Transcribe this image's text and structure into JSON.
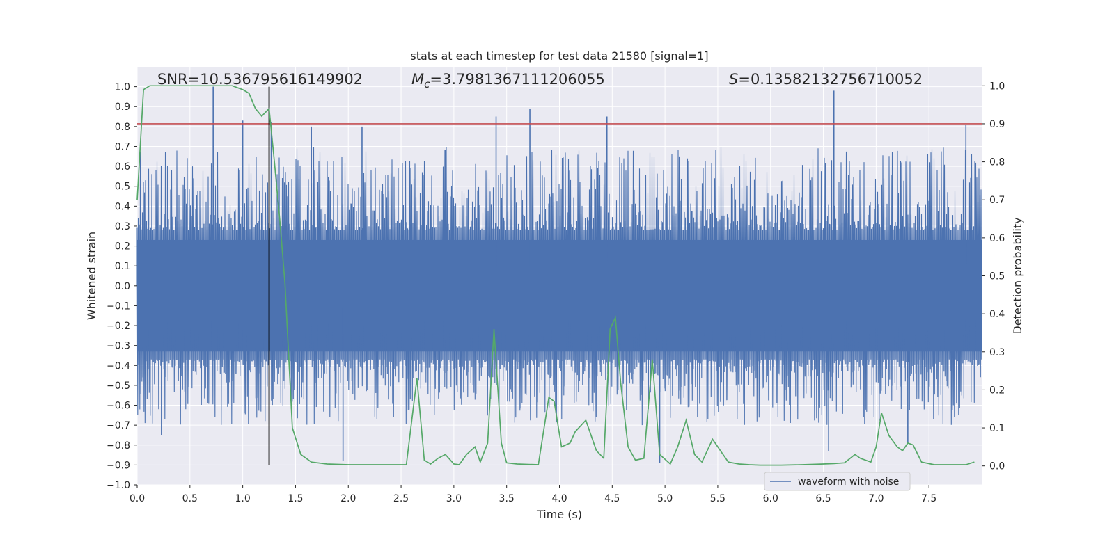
{
  "chart_data": {
    "type": "line",
    "title": "stats at each timestep for test data 21580 [signal=1]",
    "xlabel": "Time (s)",
    "ylabel": "Whitened strain",
    "ylabel_right": "Detection probability",
    "xlim": [
      0.0,
      8.0
    ],
    "ylim": [
      -1.0,
      1.1
    ],
    "ylim_right": [
      -0.05,
      1.05
    ],
    "x_ticks": [
      0.0,
      0.5,
      1.0,
      1.5,
      2.0,
      2.5,
      3.0,
      3.5,
      4.0,
      4.5,
      5.0,
      5.5,
      6.0,
      6.5,
      7.0,
      7.5
    ],
    "x_tick_labels": [
      "0.0",
      "0.5",
      "1.0",
      "1.5",
      "2.0",
      "2.5",
      "3.0",
      "3.5",
      "4.0",
      "4.5",
      "5.0",
      "5.5",
      "6.0",
      "6.5",
      "7.0",
      "7.5"
    ],
    "y_ticks": [
      1.0,
      0.9,
      0.8,
      0.7,
      0.6,
      0.5,
      0.4,
      0.3,
      0.2,
      0.1,
      0.0,
      -0.1,
      -0.2,
      -0.3,
      -0.4,
      -0.5,
      -0.6,
      -0.7,
      -0.8,
      -0.9,
      -1.0
    ],
    "y_tick_labels": [
      "1.0",
      "0.9",
      "0.8",
      "0.7",
      "0.6",
      "0.5",
      "0.4",
      "0.3",
      "0.2",
      "0.1",
      "0.0",
      "−0.1",
      "−0.2",
      "−0.3",
      "−0.4",
      "−0.5",
      "−0.6",
      "−0.7",
      "−0.8",
      "−0.9",
      "−1.0"
    ],
    "y_ticks_right": [
      1.0,
      0.9,
      0.8,
      0.7,
      0.6,
      0.5,
      0.4,
      0.3,
      0.2,
      0.1,
      0.0
    ],
    "y_tick_labels_right": [
      "1.0",
      "0.9",
      "0.8",
      "0.7",
      "0.6",
      "0.5",
      "0.4",
      "0.3",
      "0.2",
      "0.1",
      "0.0"
    ],
    "annotations": [
      {
        "name": "snr",
        "text": "SNR=10.536795616149902"
      },
      {
        "name": "chirp-mass",
        "italic": "M",
        "sub": "c",
        "rest": "=3.7981367111206055"
      },
      {
        "name": "s-stat",
        "italic": "S",
        "rest": "=0.13582132756710052"
      }
    ],
    "hlines": [
      {
        "name": "threshold-line",
        "axis": "right",
        "y": 0.9,
        "color": "#c44e52"
      }
    ],
    "vlines": [
      {
        "name": "event-time-line",
        "x": 1.25,
        "y_range": [
          -0.9,
          1.0
        ],
        "color": "#000000"
      }
    ],
    "waveform": {
      "name": "waveform with noise",
      "color": "#4c72b0",
      "band_hi": 0.23,
      "band_lo": -0.33,
      "spikes": [
        {
          "x": 0.72,
          "y": 1.0
        },
        {
          "x": 1.0,
          "y": 0.83
        },
        {
          "x": 1.27,
          "y": 0.82
        },
        {
          "x": 1.65,
          "y": 0.8
        },
        {
          "x": 2.13,
          "y": 0.8
        },
        {
          "x": 3.4,
          "y": 0.85
        },
        {
          "x": 3.72,
          "y": 0.89
        },
        {
          "x": 4.45,
          "y": 0.85
        },
        {
          "x": 6.6,
          "y": 0.98
        },
        {
          "x": 7.85,
          "y": 0.81
        },
        {
          "x": 0.23,
          "y": -0.75
        },
        {
          "x": 1.95,
          "y": -0.88
        },
        {
          "x": 4.95,
          "y": -0.89
        },
        {
          "x": 6.55,
          "y": -0.83
        },
        {
          "x": 7.3,
          "y": -0.79
        }
      ]
    },
    "series": [
      {
        "name": "detection probability",
        "axis": "right",
        "color": "#55a868",
        "x": [
          0.0,
          0.06,
          0.12,
          0.2,
          0.3,
          0.5,
          0.7,
          0.9,
          1.0,
          1.06,
          1.12,
          1.18,
          1.25,
          1.3,
          1.35,
          1.4,
          1.47,
          1.55,
          1.65,
          1.8,
          2.0,
          2.2,
          2.4,
          2.55,
          2.65,
          2.72,
          2.78,
          2.85,
          2.92,
          3.0,
          3.05,
          3.12,
          3.2,
          3.25,
          3.32,
          3.38,
          3.45,
          3.5,
          3.6,
          3.8,
          3.9,
          3.95,
          4.02,
          4.1,
          4.15,
          4.25,
          4.35,
          4.42,
          4.48,
          4.53,
          4.58,
          4.65,
          4.72,
          4.8,
          4.88,
          4.95,
          5.05,
          5.12,
          5.2,
          5.28,
          5.35,
          5.45,
          5.55,
          5.6,
          5.7,
          5.8,
          5.9,
          6.1,
          6.3,
          6.5,
          6.6,
          6.7,
          6.8,
          6.85,
          6.95,
          7.0,
          7.05,
          7.12,
          7.2,
          7.25,
          7.3,
          7.35,
          7.43,
          7.55,
          7.7,
          7.85,
          7.93
        ],
        "y": [
          0.7,
          0.99,
          1.0,
          1.0,
          1.0,
          1.0,
          1.0,
          1.0,
          0.99,
          0.98,
          0.94,
          0.92,
          0.94,
          0.8,
          0.65,
          0.48,
          0.1,
          0.03,
          0.01,
          0.005,
          0.003,
          0.003,
          0.003,
          0.003,
          0.23,
          0.015,
          0.005,
          0.02,
          0.03,
          0.005,
          0.003,
          0.03,
          0.05,
          0.01,
          0.06,
          0.36,
          0.06,
          0.008,
          0.005,
          0.003,
          0.18,
          0.17,
          0.05,
          0.06,
          0.09,
          0.12,
          0.04,
          0.02,
          0.36,
          0.39,
          0.22,
          0.05,
          0.015,
          0.02,
          0.28,
          0.03,
          0.005,
          0.05,
          0.12,
          0.03,
          0.01,
          0.07,
          0.03,
          0.01,
          0.005,
          0.003,
          0.002,
          0.002,
          0.003,
          0.005,
          0.006,
          0.008,
          0.03,
          0.02,
          0.01,
          0.05,
          0.14,
          0.08,
          0.05,
          0.04,
          0.06,
          0.055,
          0.01,
          0.003,
          0.003,
          0.003,
          0.01
        ]
      }
    ],
    "legend": {
      "position": "lower-right",
      "entries": [
        "waveform with noise"
      ]
    }
  }
}
